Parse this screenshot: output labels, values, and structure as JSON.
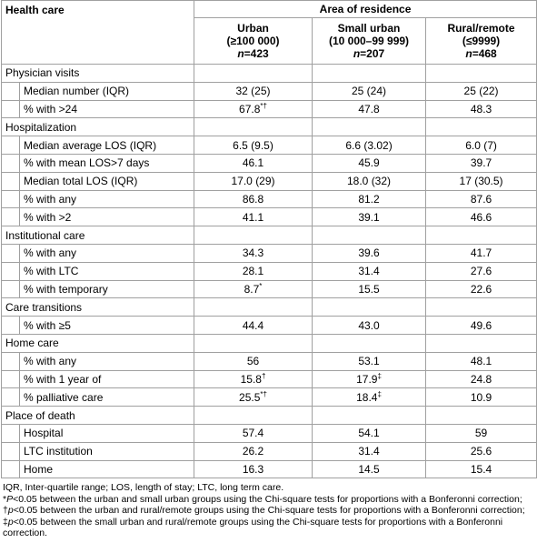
{
  "header": {
    "row_label": "Health care",
    "group": "Area of residence",
    "columns": [
      {
        "line1": "Urban",
        "line2": "(≥100 000)",
        "n": "n",
        "count": "=423"
      },
      {
        "line1": "Small urban",
        "line2": "(10 000–99 999)",
        "n": "n",
        "count": "=207"
      },
      {
        "line1": "Rural/remote",
        "line2": "(≤9999)",
        "n": "n",
        "count": "=468"
      }
    ]
  },
  "rows": [
    {
      "section": "Physician visits"
    },
    {
      "label": "Median number (IQR)",
      "values": [
        "32 (25)",
        "25 (24)",
        "25 (22)"
      ]
    },
    {
      "label": "% with >24",
      "values": [
        {
          "text": "67.8",
          "sup": "*†"
        },
        "47.8",
        "48.3"
      ]
    },
    {
      "section": "Hospitalization"
    },
    {
      "label": "Median average LOS (IQR)",
      "values": [
        "6.5 (9.5)",
        "6.6 (3.02)",
        "6.0 (7)"
      ]
    },
    {
      "label": "% with mean LOS>7 days",
      "values": [
        "46.1",
        "45.9",
        "39.7"
      ]
    },
    {
      "label": "Median total LOS (IQR)",
      "values": [
        "17.0 (29)",
        "18.0 (32)",
        "17 (30.5)"
      ]
    },
    {
      "label": "% with any",
      "values": [
        "86.8",
        "81.2",
        "87.6"
      ]
    },
    {
      "label": "% with >2",
      "values": [
        "41.1",
        "39.1",
        "46.6"
      ]
    },
    {
      "section": "Institutional care"
    },
    {
      "label": "% with any",
      "values": [
        "34.3",
        "39.6",
        "41.7"
      ]
    },
    {
      "label": "% with LTC",
      "values": [
        "28.1",
        "31.4",
        "27.6"
      ]
    },
    {
      "label": "% with temporary",
      "values": [
        {
          "text": "8.7",
          "sup": "*"
        },
        "15.5",
        "22.6"
      ]
    },
    {
      "section": "Care transitions"
    },
    {
      "label": "% with ≥5",
      "values": [
        "44.4",
        "43.0",
        "49.6"
      ]
    },
    {
      "section": "Home care"
    },
    {
      "label": "% with any",
      "values": [
        "56",
        "53.1",
        "48.1"
      ]
    },
    {
      "label": "% with 1 year of",
      "values": [
        {
          "text": "15.8",
          "sup": "†"
        },
        {
          "text": "17.9",
          "sup": "‡"
        },
        "24.8"
      ]
    },
    {
      "label": "% palliative care",
      "values": [
        {
          "text": "25.5",
          "sup": "*†"
        },
        {
          "text": "18.4",
          "sup": "‡"
        },
        "10.9"
      ]
    },
    {
      "section": "Place of death"
    },
    {
      "label": "Hospital",
      "values": [
        "57.4",
        "54.1",
        "59"
      ]
    },
    {
      "label": "LTC institution",
      "values": [
        "26.2",
        "31.4",
        "25.6"
      ]
    },
    {
      "label": "Home",
      "values": [
        "16.3",
        "14.5",
        "15.4"
      ]
    }
  ],
  "footnotes": [
    [
      "IQR, Inter-quartile range; LOS, length of stay; LTC, long term care."
    ],
    [
      "*",
      "P",
      "<0.05 between the urban and small urban groups using the Chi-square tests for proportions with a Bonferonni correction; †",
      "p",
      "<0.05 between the urban and rural/remote groups using the Chi-square tests for proportions with a Bonferonni correction; ‡",
      "p",
      "<0.05 between the small urban and rural/remote groups using the Chi-square tests for proportions with a Bonferonni correction."
    ]
  ]
}
